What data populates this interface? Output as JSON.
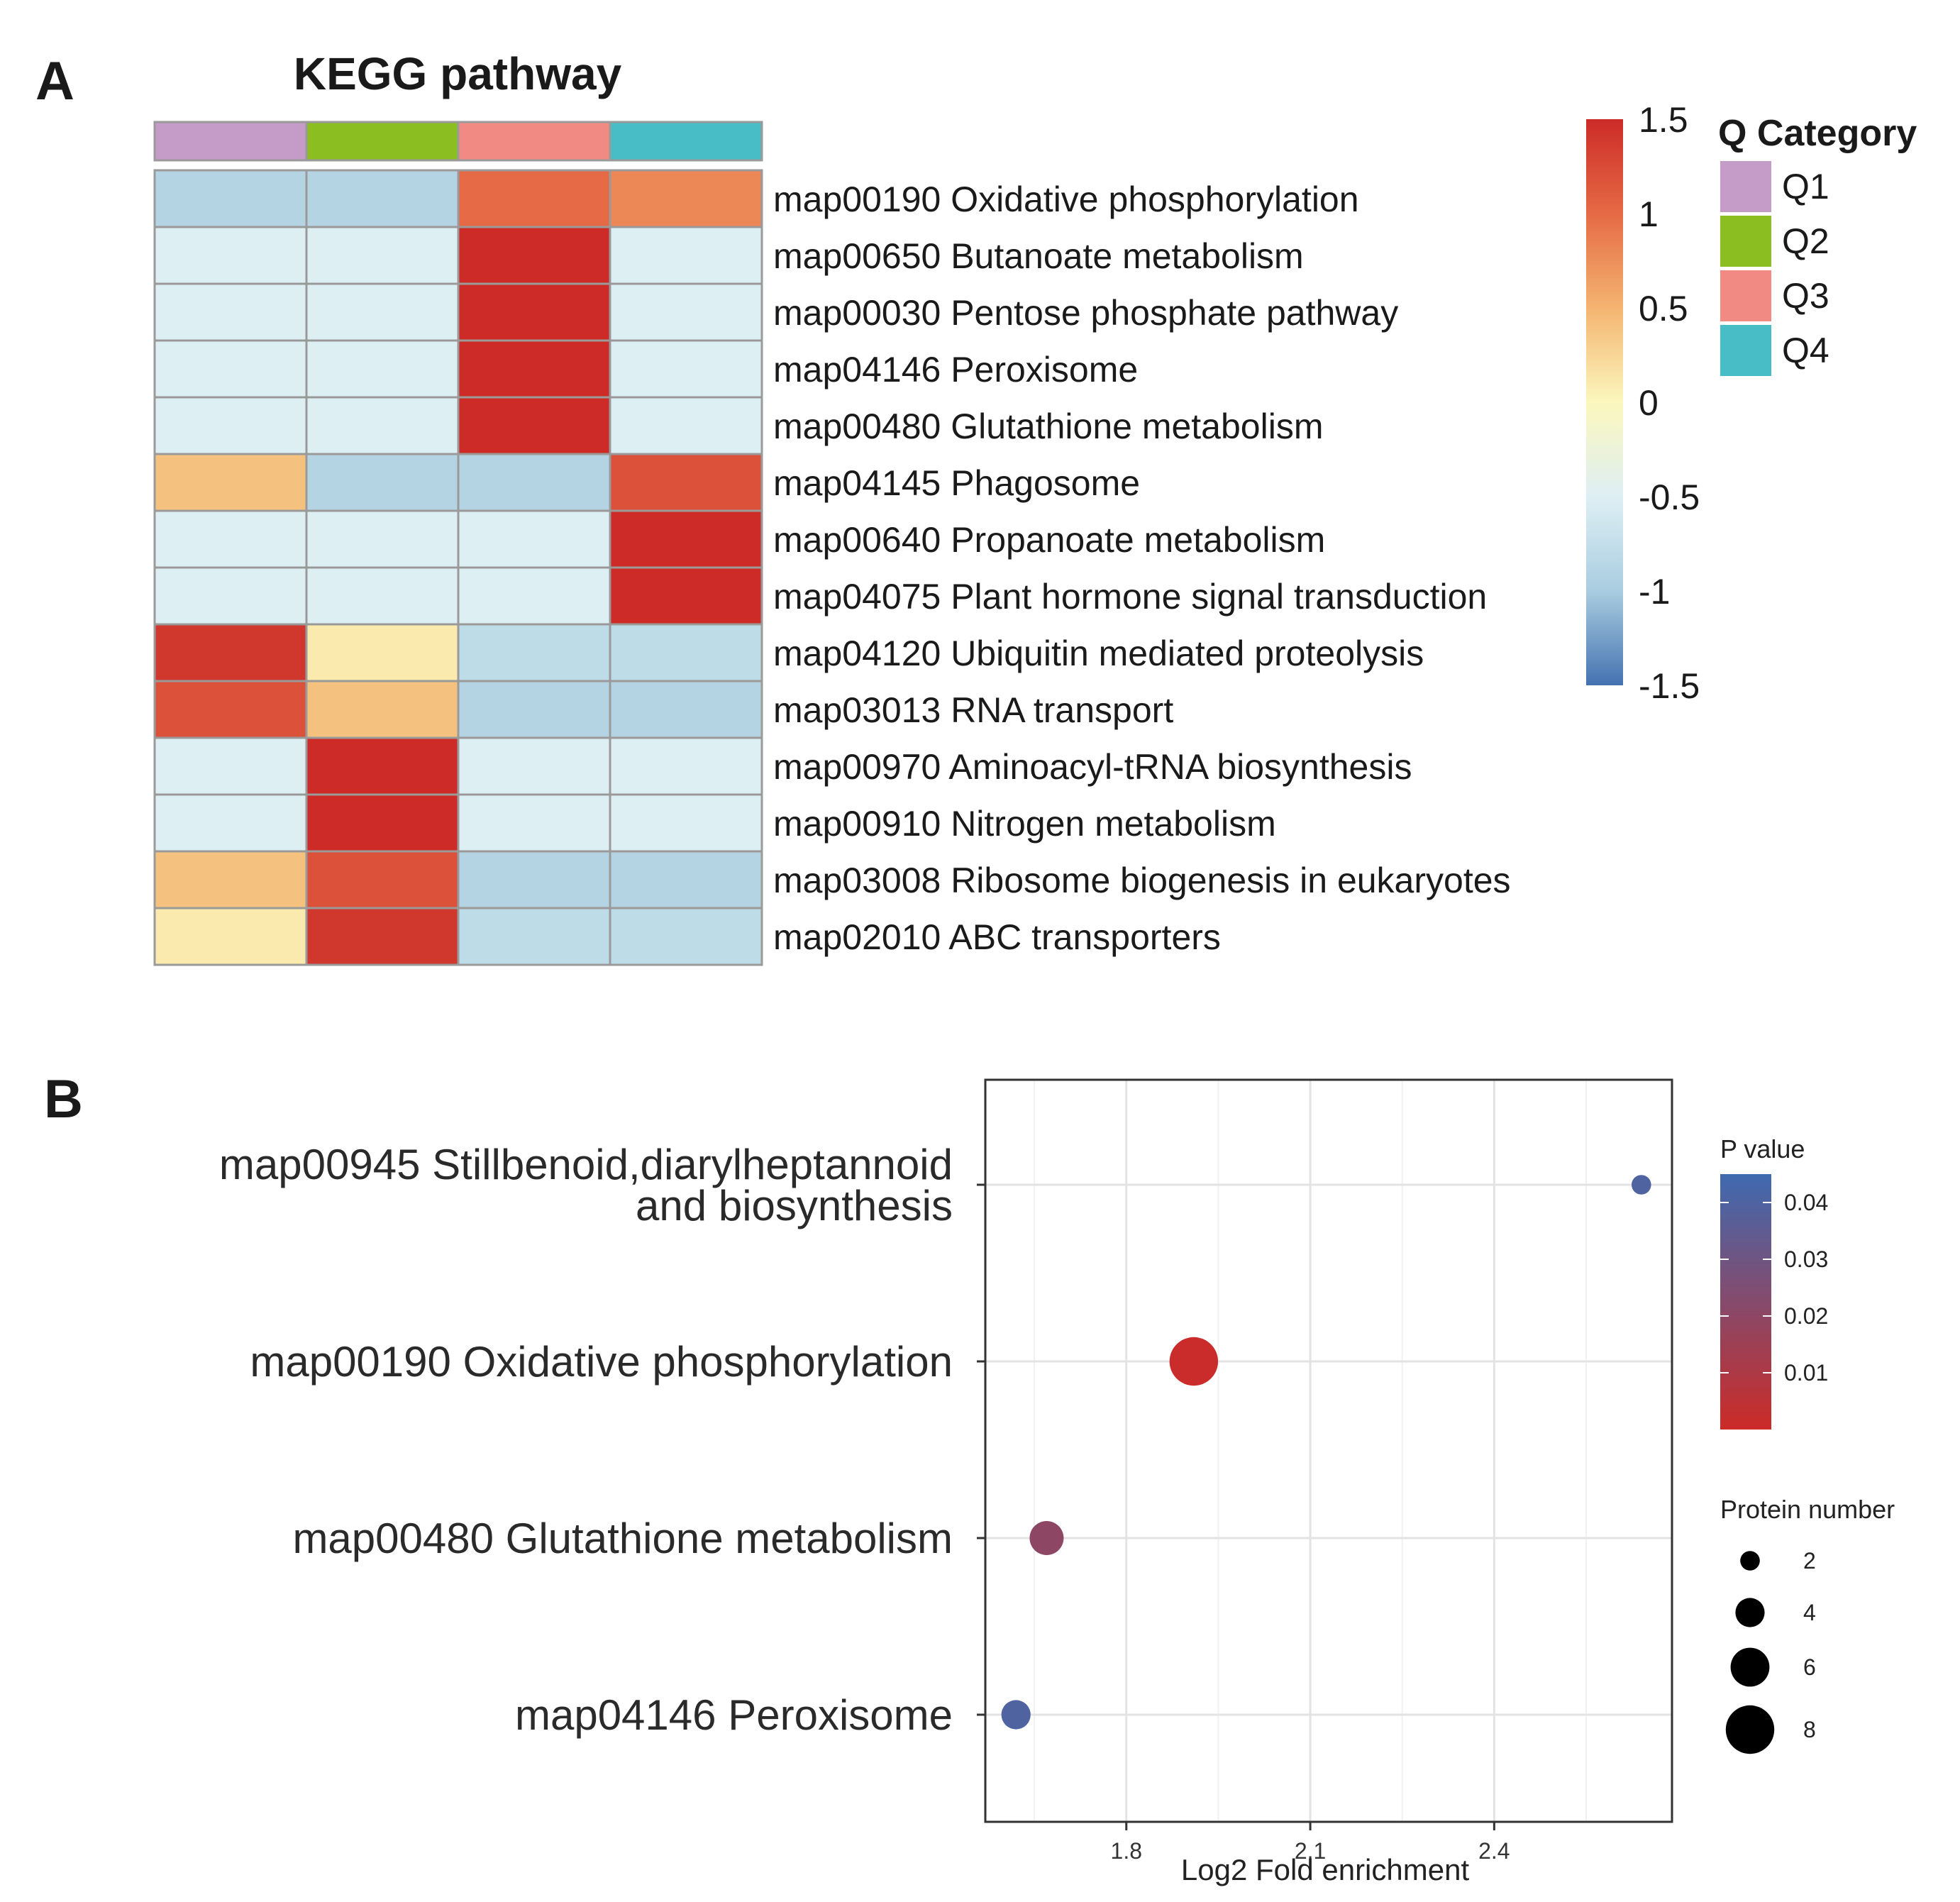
{
  "panels": {
    "a_letter": "A",
    "b_letter": "B"
  },
  "chart_data": [
    {
      "type": "heatmap",
      "title": "KEGG pathway",
      "columns": [
        "Q1",
        "Q2",
        "Q3",
        "Q4"
      ],
      "rows": [
        "map00190 Oxidative phosphorylation",
        "map00650 Butanoate metabolism",
        "map00030 Pentose phosphate pathway",
        "map04146 Peroxisome",
        "map00480 Glutathione metabolism",
        "map04145 Phagosome",
        "map00640 Propanoate metabolism",
        "map04075 Plant hormone signal transduction",
        "map04120 Ubiquitin mediated proteolysis",
        "map03013 RNA transport",
        "map00970 Aminoacyl-tRNA biosynthesis",
        "map00910 Nitrogen metabolism",
        "map03008 Ribosome biogenesis in eukaryotes",
        "map02010 ABC transporters"
      ],
      "values": [
        [
          -0.9,
          -0.9,
          1.0,
          0.8
        ],
        [
          -0.5,
          -0.5,
          1.5,
          -0.5
        ],
        [
          -0.5,
          -0.5,
          1.5,
          -0.5
        ],
        [
          -0.5,
          -0.5,
          1.5,
          -0.5
        ],
        [
          -0.5,
          -0.5,
          1.5,
          -0.5
        ],
        [
          0.4,
          -0.9,
          -0.9,
          1.2
        ],
        [
          -0.5,
          -0.5,
          -0.5,
          1.5
        ],
        [
          -0.5,
          -0.5,
          -0.5,
          1.5
        ],
        [
          1.4,
          0.1,
          -0.8,
          -0.8
        ],
        [
          1.2,
          0.4,
          -0.9,
          -0.9
        ],
        [
          -0.5,
          1.5,
          -0.5,
          -0.5
        ],
        [
          -0.5,
          1.5,
          -0.5,
          -0.5
        ],
        [
          0.4,
          1.2,
          -0.9,
          -0.9
        ],
        [
          0.1,
          1.4,
          -0.8,
          -0.8
        ]
      ],
      "color_scale": {
        "range": [
          -1.5,
          1.5
        ],
        "ticks": [
          "1.5",
          "1",
          "0.5",
          "0",
          "-0.5",
          "-1",
          "-1.5"
        ],
        "tick_values": [
          1.5,
          1,
          0.5,
          0,
          -0.5,
          -1,
          -1.5
        ],
        "colors": [
          "#4472b0",
          "#a9cde0",
          "#deeff4",
          "#fbf7bd",
          "#f4b470",
          "#e56a45",
          "#cc2b27"
        ]
      },
      "legend": {
        "title": "Q Category",
        "entries": [
          {
            "label": "Q1",
            "color": "#c59bc8"
          },
          {
            "label": "Q2",
            "color": "#8bbf21"
          },
          {
            "label": "Q3",
            "color": "#f08a83"
          },
          {
            "label": "Q4",
            "color": "#49bdc6"
          }
        ]
      }
    },
    {
      "type": "scatter",
      "title": "",
      "xlabel": "Log2 Fold enrichment",
      "ylabel": "",
      "xlim": [
        1.57,
        2.69
      ],
      "xticks": [
        1.8,
        2.1,
        2.4
      ],
      "xtick_labels": [
        "1.8",
        "2.1",
        "2.4"
      ],
      "grid": true,
      "categories": [
        "map00945 Stillbenoid,diarylheptannoid and biosynthesis",
        "map00190 Oxidative phosphorylation",
        "map00480 Glutathione metabolism",
        "map04146 Peroxisome"
      ],
      "category_lines": [
        [
          "map00945 Stillbenoid,diarylheptannoid",
          "and biosynthesis"
        ],
        [
          "map00190 Oxidative phosphorylation"
        ],
        [
          "map00480 Glutathione metabolism"
        ],
        [
          "map04146 Peroxisome"
        ]
      ],
      "points": [
        {
          "category": "map00945 Stillbenoid,diarylheptannoid and biosynthesis",
          "x": 2.64,
          "p_value": 0.04,
          "protein_number": 2
        },
        {
          "category": "map00190 Oxidative phosphorylation",
          "x": 1.91,
          "p_value": 0.001,
          "protein_number": 8
        },
        {
          "category": "map00480 Glutathione metabolism",
          "x": 1.67,
          "p_value": 0.02,
          "protein_number": 5
        },
        {
          "category": "map04146 Peroxisome",
          "x": 1.62,
          "p_value": 0.04,
          "protein_number": 4
        }
      ],
      "color_legend": {
        "title": "P value",
        "range": [
          0,
          0.045
        ],
        "ticks": [
          "0.04",
          "0.03",
          "0.02",
          "0.01"
        ],
        "tick_values": [
          0.04,
          0.03,
          0.02,
          0.01
        ],
        "low_color": "#cc2b27",
        "high_color": "#3f6ab0"
      },
      "size_legend": {
        "title": "Protein number",
        "values": [
          2,
          4,
          6,
          8
        ],
        "labels": [
          "2",
          "4",
          "6",
          "8"
        ]
      }
    }
  ]
}
